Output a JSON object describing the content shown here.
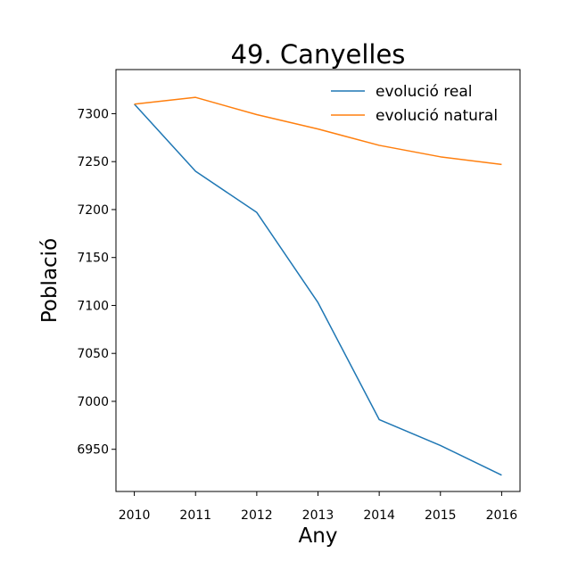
{
  "chart_data": {
    "type": "line",
    "title": "49. Canyelles",
    "xlabel": "Any",
    "ylabel": "Població",
    "x": [
      2010,
      2011,
      2012,
      2013,
      2014,
      2015,
      2016
    ],
    "xticks": [
      "2010",
      "2011",
      "2012",
      "2013",
      "2014",
      "2015",
      "2016"
    ],
    "yticks": [
      "6950",
      "7000",
      "7050",
      "7100",
      "7150",
      "7200",
      "7250",
      "7300"
    ],
    "xlim": [
      2009.7,
      2016.3
    ],
    "ylim": [
      6906,
      7346
    ],
    "grid": false,
    "legend_position": "top-right",
    "series": [
      {
        "name": "evolució real",
        "color": "#1f77b4",
        "values": [
          7310,
          7240,
          7197,
          7103,
          6981,
          6954,
          6923
        ]
      },
      {
        "name": "evolució natural",
        "color": "#ff7f0e",
        "values": [
          7310,
          7317,
          7299,
          7284,
          7267,
          7255,
          7247
        ]
      }
    ]
  }
}
